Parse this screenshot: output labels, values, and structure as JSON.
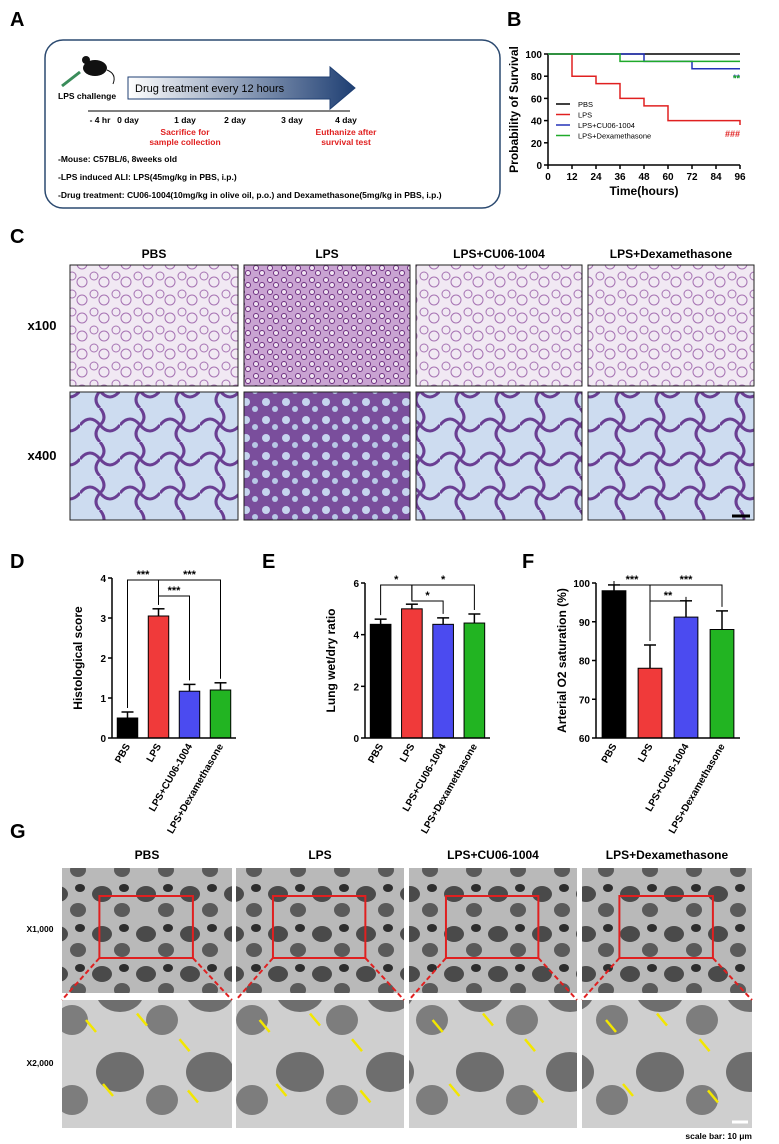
{
  "panel_labels": [
    "A",
    "B",
    "C",
    "D",
    "E",
    "F",
    "G"
  ],
  "schematic": {
    "challenge": "LPS challenge",
    "treatment": "Drug treatment every 12 hours",
    "timeline": [
      "- 4 hr",
      "0 day",
      "1 day",
      "2 day",
      "3 day",
      "4 day"
    ],
    "sacrifice": [
      "Sacrifice for",
      "sample collection"
    ],
    "euthanize": [
      "Euthanize after",
      "survival test"
    ],
    "notes": [
      "-Mouse: C57BL/6, 8weeks old",
      "-LPS induced ALI: LPS(45mg/kg in PBS, i.p.)",
      "-Drug treatment: CU06-1004(10mg/kg in olive oil, p.o.) and Dexamethasone(5mg/kg in PBS, i.p.)"
    ]
  },
  "histology": {
    "groups": [
      "PBS",
      "LPS",
      "LPS+CU06-1004",
      "LPS+Dexamethasone"
    ],
    "rows": [
      "x100",
      "x400"
    ]
  },
  "sem": {
    "groups": [
      "PBS",
      "LPS",
      "LPS+CU06-1004",
      "LPS+Dexamethasone"
    ],
    "rows": [
      "X1,000",
      "X2,000"
    ],
    "scale_note": "scale bar: 10 μm"
  },
  "chart_data": [
    {
      "type": "step",
      "xlabel": "Time(hours)",
      "ylabel": "Probability of Survival",
      "xlim": [
        0,
        96
      ],
      "ylim": [
        0,
        100
      ],
      "xticks": [
        0,
        12,
        24,
        36,
        48,
        60,
        72,
        84,
        96
      ],
      "yticks": [
        0,
        20,
        40,
        60,
        80,
        100
      ],
      "legend": "center-left",
      "series": [
        {
          "name": "PBS",
          "color": "#000000",
          "x": [
            0,
            96
          ],
          "values": [
            100,
            100
          ]
        },
        {
          "name": "LPS",
          "color": "#e02020",
          "x": [
            0,
            12,
            24,
            36,
            48,
            60,
            96
          ],
          "values": [
            100,
            80,
            73.3,
            60,
            53.3,
            40,
            36
          ],
          "end_label": "###"
        },
        {
          "name": "LPS+CU06-1004",
          "color": "#2432b8",
          "x": [
            0,
            48,
            72,
            96
          ],
          "values": [
            100,
            93.3,
            86.7,
            86.7
          ],
          "end_label": "**"
        },
        {
          "name": "LPS+Dexamethasone",
          "color": "#1faa2a",
          "x": [
            0,
            36,
            96
          ],
          "values": [
            100,
            93.3,
            93.3
          ],
          "end_label": "**"
        }
      ]
    },
    {
      "type": "bar",
      "ylabel": "Histological score",
      "categories": [
        "PBS",
        "LPS",
        "LPS+CU06-1004",
        "LPS+Dexamethasone"
      ],
      "values": [
        0.5,
        3.05,
        1.17,
        1.2
      ],
      "errors": [
        0.15,
        0.18,
        0.17,
        0.18
      ],
      "colors": [
        "#000000",
        "#f03a3a",
        "#4b4bf0",
        "#22b422"
      ],
      "ylim": [
        0,
        4
      ],
      "yticks": [
        0,
        1,
        2,
        3,
        4
      ],
      "annotations": [
        "***",
        "***",
        "***"
      ]
    },
    {
      "type": "bar",
      "ylabel": "Lung wet/dry ratio",
      "categories": [
        "PBS",
        "LPS",
        "LPS+CU06-1004",
        "LPS+Dexamethasone"
      ],
      "values": [
        4.4,
        5.0,
        4.4,
        4.45
      ],
      "errors": [
        0.2,
        0.18,
        0.25,
        0.35
      ],
      "colors": [
        "#000000",
        "#f03a3a",
        "#4b4bf0",
        "#22b422"
      ],
      "ylim": [
        0,
        6
      ],
      "yticks": [
        0,
        2,
        4,
        6
      ],
      "annotations": [
        "*",
        "*",
        "*"
      ]
    },
    {
      "type": "bar",
      "ylabel": "Arterial O2 saturation (%)",
      "categories": [
        "PBS",
        "LPS",
        "LPS+CU06-1004",
        "LPS+Dexamethasone"
      ],
      "values": [
        98,
        78,
        91.2,
        88
      ],
      "errors": [
        1.5,
        6,
        4.2,
        4.8
      ],
      "colors": [
        "#000000",
        "#f03a3a",
        "#4b4bf0",
        "#22b422"
      ],
      "ylim": [
        60,
        100
      ],
      "yticks": [
        60,
        70,
        80,
        90,
        100
      ],
      "annotations": [
        "***",
        "**",
        "***"
      ]
    }
  ]
}
